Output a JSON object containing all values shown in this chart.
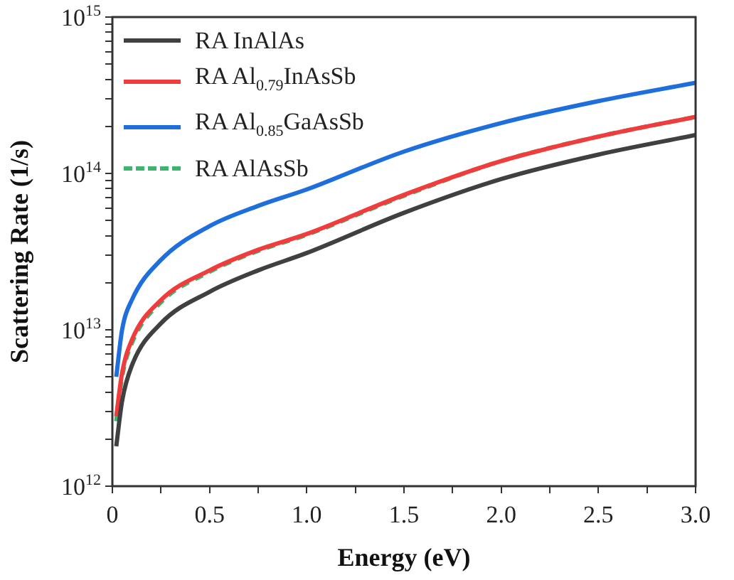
{
  "chart_data": {
    "type": "line",
    "xlabel": "Energy (eV)",
    "ylabel": "Scattering Rate (1/s)",
    "log": "y",
    "grid": false,
    "legend": "top left",
    "marker": "none",
    "x": [
      0.02,
      0.05,
      0.1,
      0.25,
      0.5,
      0.75,
      1.0,
      1.5,
      2.0,
      2.5,
      3.0
    ],
    "xlim": [
      0,
      3
    ],
    "xticks": [
      {
        "value": 0,
        "label": "0"
      },
      {
        "value": 0.25,
        "label": null
      },
      {
        "value": 0.5,
        "label": "0.5"
      },
      {
        "value": 0.75,
        "label": null
      },
      {
        "value": 1,
        "label": "1.0"
      },
      {
        "value": 1.25,
        "label": null
      },
      {
        "value": 1.5,
        "label": "1.5"
      },
      {
        "value": 1.75,
        "label": null
      },
      {
        "value": 2,
        "label": "2.0"
      },
      {
        "value": 2.25,
        "label": null
      },
      {
        "value": 2.5,
        "label": "2.5"
      },
      {
        "value": 2.75,
        "label": null
      },
      {
        "value": 3,
        "label": "3.0"
      }
    ],
    "ylim": [
      1000000000000.0,
      1000000000000000.0
    ],
    "yticks": [
      {
        "value": 1000000000000.0,
        "label": "10$^{12}$"
      },
      {
        "value": 2000000000000.0,
        "label": null
      },
      {
        "value": 3000000000000.0,
        "label": null
      },
      {
        "value": 4000000000000.0,
        "label": null
      },
      {
        "value": 5000000000000.0,
        "label": null
      },
      {
        "value": 6000000000000.0,
        "label": null
      },
      {
        "value": 7000000000000.0,
        "label": null
      },
      {
        "value": 8000000000000.0,
        "label": null
      },
      {
        "value": 9000000000000.0,
        "label": null
      },
      {
        "value": 10000000000000.0,
        "label": "10$^{13}$"
      },
      {
        "value": 20000000000000.0,
        "label": null
      },
      {
        "value": 30000000000000.0,
        "label": null
      },
      {
        "value": 40000000000000.0,
        "label": null
      },
      {
        "value": 50000000000000.0,
        "label": null
      },
      {
        "value": 60000000000000.0,
        "label": null
      },
      {
        "value": 70000000000000.0,
        "label": null
      },
      {
        "value": 80000000000000.0,
        "label": null
      },
      {
        "value": 90000000000000.0,
        "label": null
      },
      {
        "value": 100000000000000.0,
        "label": "10$^{14}$"
      },
      {
        "value": 200000000000000.0,
        "label": null
      },
      {
        "value": 300000000000000.0,
        "label": null
      },
      {
        "value": 400000000000000.0,
        "label": null
      },
      {
        "value": 500000000000000.0,
        "label": null
      },
      {
        "value": 600000000000000.0,
        "label": null
      },
      {
        "value": 700000000000000.0,
        "label": null
      },
      {
        "value": 800000000000000.0,
        "label": null
      },
      {
        "value": 900000000000000.0,
        "label": null
      },
      {
        "value": 1000000000000000.0,
        "label": "10$^{15}$"
      }
    ],
    "series": [
      {
        "name": "RA InAlAs",
        "color": "#404040",
        "values": [
          1800000000000.0,
          3500000000000.0,
          5900000000000.0,
          11000000000000.0,
          17500000000000.0,
          24000000000000.0,
          31000000000000.0,
          56000000000000.0,
          92000000000000.0,
          132000000000000.0,
          176000000000000.0
        ]
      },
      {
        "name": "RA Al$_{0.79}$InAsSb",
        "color": "#f03c3c",
        "values": [
          2800000000000.0,
          5300000000000.0,
          8600000000000.0,
          15500000000000.0,
          24000000000000.0,
          32500000000000.0,
          41000000000000.0,
          73000000000000.0,
          120000000000000.0,
          172000000000000.0,
          230000000000000.0
        ]
      },
      {
        "name": "RA Al$_{0.85}$GaAsSb",
        "color": "#1e6fdc",
        "values": [
          5000000000000.0,
          10000000000000.0,
          15500000000000.0,
          28000000000000.0,
          46000000000000.0,
          62000000000000.0,
          79000000000000.0,
          138000000000000.0,
          210000000000000.0,
          290000000000000.0,
          380000000000000.0
        ]
      },
      {
        "name": "RA AlAsSb",
        "color": "#3cb46e",
        "line_style": "dashed",
        "values": [
          2600000000000.0,
          5000000000000.0,
          8200000000000.0,
          15000000000000.0,
          23500000000000.0,
          32000000000000.0,
          40500000000000.0,
          72000000000000.0,
          120000000000000.0,
          172000000000000.0,
          230000000000000.0
        ]
      }
    ]
  }
}
